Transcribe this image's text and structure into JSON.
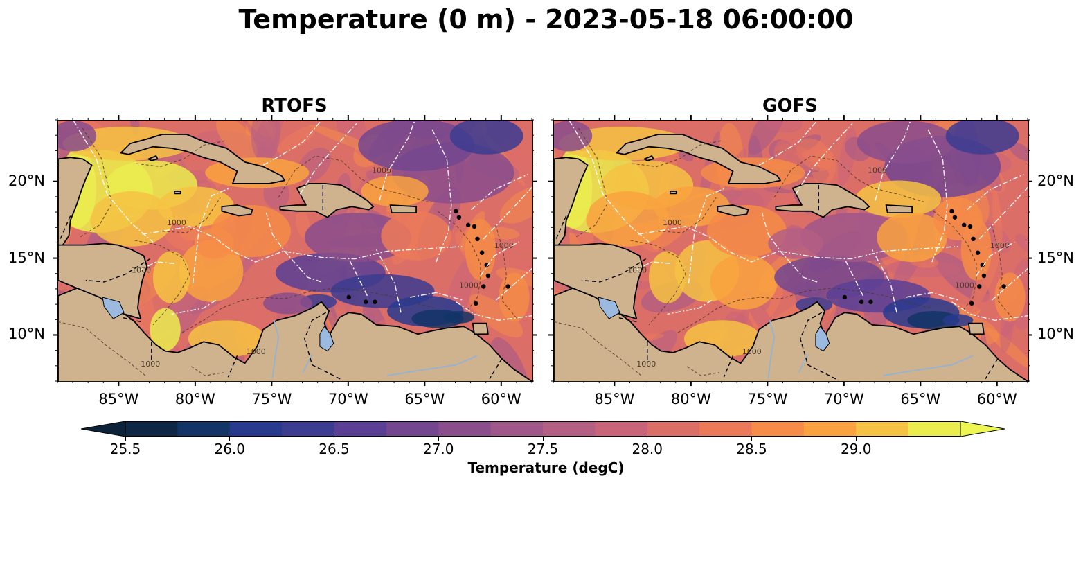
{
  "title": "Temperature (0 m) - 2023-05-18 06:00:00",
  "panels": [
    {
      "title": "RTOFS"
    },
    {
      "title": "GOFS"
    }
  ],
  "map": {
    "lon_range": [
      -89,
      -58
    ],
    "lat_range": [
      7,
      24
    ],
    "lon_ticks": [
      {
        "value": -85,
        "label": "85°W"
      },
      {
        "value": -80,
        "label": "80°W"
      },
      {
        "value": -75,
        "label": "75°W"
      },
      {
        "value": -70,
        "label": "70°W"
      },
      {
        "value": -65,
        "label": "65°W"
      },
      {
        "value": -60,
        "label": "60°W"
      }
    ],
    "lat_ticks": [
      {
        "value": 20,
        "label": "20°N"
      },
      {
        "value": 15,
        "label": "15°N"
      },
      {
        "value": 10,
        "label": "10°N"
      }
    ],
    "land_color": "#cfb38f",
    "lake_color": "#9cb9e0",
    "contour_label": "1000"
  },
  "colorbar": {
    "label": "Temperature (degC)",
    "ticks": [
      {
        "value": 25.5,
        "label": "25.5"
      },
      {
        "value": 26.0,
        "label": "26.0"
      },
      {
        "value": 26.5,
        "label": "26.5"
      },
      {
        "value": 27.0,
        "label": "27.0"
      },
      {
        "value": 27.5,
        "label": "27.5"
      },
      {
        "value": 28.0,
        "label": "28.0"
      },
      {
        "value": 28.5,
        "label": "28.5"
      },
      {
        "value": 29.0,
        "label": "29.0"
      }
    ],
    "levels": [
      25.5,
      25.75,
      26.0,
      26.25,
      26.5,
      26.75,
      27.0,
      27.25,
      27.5,
      27.75,
      28.0,
      28.25,
      28.5,
      28.75,
      29.0,
      29.25
    ],
    "colors": [
      "#0d2744",
      "#123466",
      "#283a8e",
      "#3c3c90",
      "#5a3f95",
      "#73468f",
      "#8a4e8c",
      "#a0578a",
      "#b45f84",
      "#c8657a",
      "#dc6e68",
      "#ec7a59",
      "#f68c48",
      "#f9a23f",
      "#f6c243",
      "#ebec4e"
    ],
    "under_color": "#0c2238",
    "over_color": "#eef654"
  }
}
